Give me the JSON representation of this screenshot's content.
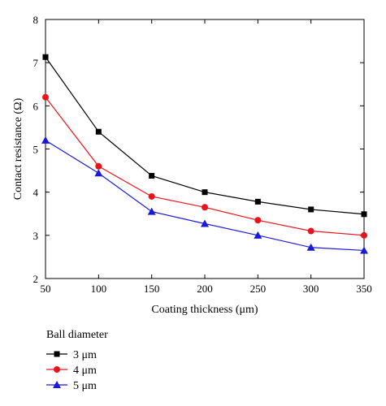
{
  "chart_data": {
    "type": "line",
    "title": "",
    "xlabel": "Coating thickness (μm)",
    "ylabel": "Contact resistance (Ω)",
    "xlim": [
      50,
      350
    ],
    "ylim": [
      2,
      8
    ],
    "x_ticks": [
      "50",
      "100",
      "150",
      "200",
      "250",
      "300",
      "350"
    ],
    "y_ticks": [
      "2",
      "3",
      "4",
      "5",
      "6",
      "7",
      "8"
    ],
    "x": [
      50,
      100,
      150,
      200,
      250,
      300,
      350
    ],
    "grid": false,
    "legend": {
      "title": "Ball diameter",
      "placement": "below"
    },
    "series": [
      {
        "name": "3 μm",
        "color": "#000000",
        "marker": "square",
        "values": [
          7.13,
          5.4,
          4.38,
          4.0,
          3.78,
          3.6,
          3.49
        ]
      },
      {
        "name": "4 μm",
        "color": "#e8141b",
        "marker": "circle",
        "values": [
          6.2,
          4.6,
          3.9,
          3.65,
          3.35,
          3.1,
          3.0
        ]
      },
      {
        "name": "5 μm",
        "color": "#1a1ad6",
        "marker": "triangle",
        "values": [
          5.2,
          4.44,
          3.55,
          3.27,
          3.0,
          2.72,
          2.65
        ]
      }
    ]
  }
}
